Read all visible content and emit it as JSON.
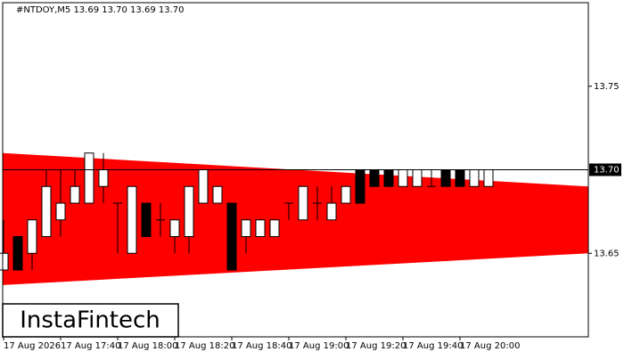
{
  "chart_data": {
    "type": "candlestick",
    "title": "#NTDOY,M5  13.69 13.70 13.69 13.70",
    "logo": "InstaFintech",
    "categories": [
      "17 Aug 2026",
      null,
      null,
      null,
      "17 Aug 17:40",
      null,
      null,
      null,
      "17 Aug 18:00",
      null,
      null,
      null,
      "17 Aug 18:20",
      null,
      null,
      null,
      "17 Aug 18:40",
      null,
      null,
      null,
      "17 Aug 19:00",
      null,
      null,
      null,
      "17 Aug 19:20",
      null,
      null,
      null,
      "17 Aug 19:40",
      null,
      null,
      null,
      "17 Aug 20:00",
      null,
      null
    ],
    "open": [
      13.64,
      13.66,
      13.65,
      13.66,
      13.67,
      13.68,
      13.68,
      13.69,
      13.68,
      13.65,
      13.68,
      13.67,
      13.66,
      13.66,
      13.68,
      13.68,
      13.68,
      13.66,
      13.66,
      13.66,
      13.68,
      13.67,
      13.68,
      13.67,
      13.68,
      13.7,
      13.7,
      13.7,
      13.69,
      13.69,
      13.69,
      13.7,
      13.7,
      13.69,
      13.69
    ],
    "high": [
      13.67,
      13.66,
      13.67,
      13.7,
      13.7,
      13.7,
      13.71,
      13.71,
      13.68,
      13.69,
      13.68,
      13.68,
      13.67,
      13.69,
      13.7,
      13.69,
      13.68,
      13.67,
      13.67,
      13.67,
      13.68,
      13.69,
      13.69,
      13.69,
      13.69,
      13.7,
      13.7,
      13.7,
      13.7,
      13.7,
      13.7,
      13.7,
      13.7,
      13.7,
      13.7
    ],
    "low": [
      13.64,
      13.64,
      13.64,
      13.66,
      13.66,
      13.68,
      13.68,
      13.68,
      13.65,
      13.65,
      13.66,
      13.66,
      13.65,
      13.65,
      13.68,
      13.68,
      13.64,
      13.65,
      13.66,
      13.66,
      13.67,
      13.67,
      13.67,
      13.67,
      13.68,
      13.68,
      13.69,
      13.69,
      13.69,
      13.69,
      13.69,
      13.69,
      13.69,
      13.69,
      13.69
    ],
    "close": [
      13.65,
      13.64,
      13.67,
      13.69,
      13.68,
      13.69,
      13.71,
      13.7,
      13.68,
      13.69,
      13.66,
      13.67,
      13.67,
      13.69,
      13.7,
      13.69,
      13.64,
      13.67,
      13.67,
      13.67,
      13.68,
      13.69,
      13.68,
      13.68,
      13.69,
      13.68,
      13.69,
      13.69,
      13.7,
      13.7,
      13.69,
      13.69,
      13.69,
      13.7,
      13.7
    ],
    "up_color": "#ffffff",
    "down_color": "#000000",
    "band": {
      "color": "#ff0000",
      "upper": [
        13.71,
        13.69
      ],
      "lower": [
        13.631,
        13.65
      ]
    },
    "last_price": {
      "value": 13.7,
      "label": "13.70"
    },
    "ylim": [
      13.6,
      13.8
    ],
    "yticks": [
      13.65,
      13.75
    ]
  }
}
